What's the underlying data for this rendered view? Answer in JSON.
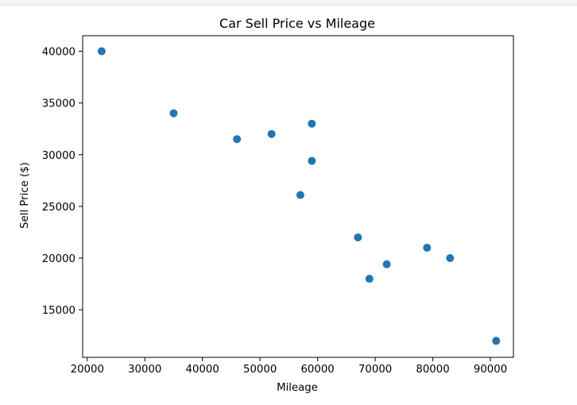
{
  "chart_data": {
    "type": "scatter",
    "title": "Car Sell Price vs Mileage",
    "xlabel": "Mileage",
    "ylabel": "Sell Price ($)",
    "xlim": [
      19200,
      94000
    ],
    "ylim": [
      10400,
      41500
    ],
    "xticks": [
      20000,
      30000,
      40000,
      50000,
      60000,
      70000,
      80000,
      90000
    ],
    "yticks": [
      15000,
      20000,
      25000,
      30000,
      35000,
      40000
    ],
    "xtick_labels": [
      "20000",
      "30000",
      "40000",
      "50000",
      "60000",
      "70000",
      "80000",
      "90000"
    ],
    "ytick_labels": [
      "15000",
      "20000",
      "25000",
      "30000",
      "35000",
      "40000"
    ],
    "marker_color": "#1f77b4",
    "grid": false,
    "points": [
      {
        "x": 22500,
        "y": 40000
      },
      {
        "x": 35000,
        "y": 34000
      },
      {
        "x": 46000,
        "y": 31500
      },
      {
        "x": 52000,
        "y": 32000
      },
      {
        "x": 57000,
        "y": 26100
      },
      {
        "x": 59000,
        "y": 33000
      },
      {
        "x": 59000,
        "y": 29400
      },
      {
        "x": 67000,
        "y": 22000
      },
      {
        "x": 69000,
        "y": 18000
      },
      {
        "x": 72000,
        "y": 19400
      },
      {
        "x": 79000,
        "y": 21000
      },
      {
        "x": 83000,
        "y": 20000
      },
      {
        "x": 91000,
        "y": 12000
      }
    ]
  }
}
